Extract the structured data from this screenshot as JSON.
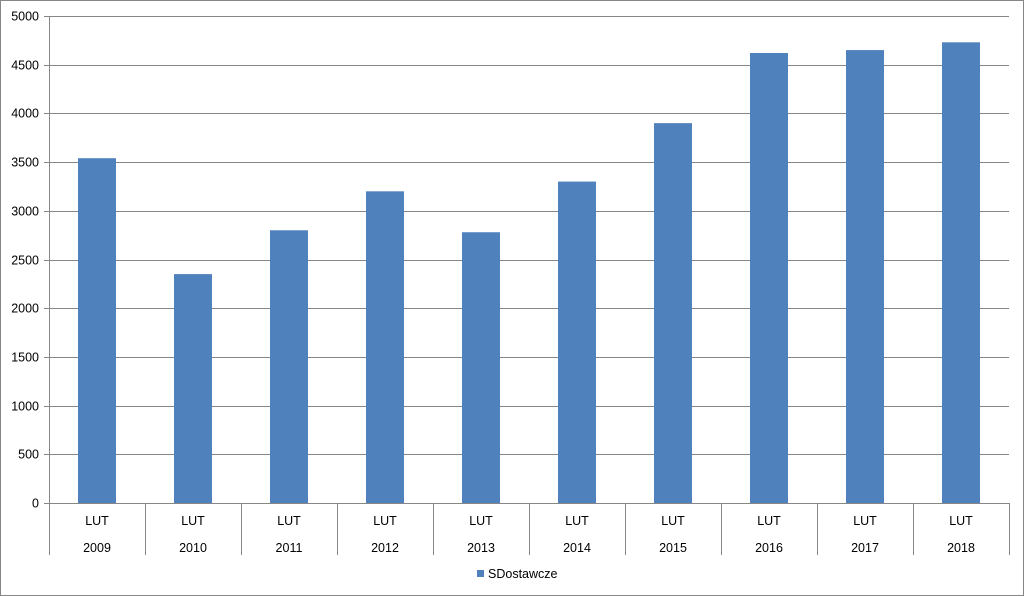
{
  "chart_data": {
    "type": "bar",
    "categories": [
      {
        "month": "LUT",
        "year": "2009"
      },
      {
        "month": "LUT",
        "year": "2010"
      },
      {
        "month": "LUT",
        "year": "2011"
      },
      {
        "month": "LUT",
        "year": "2012"
      },
      {
        "month": "LUT",
        "year": "2013"
      },
      {
        "month": "LUT",
        "year": "2014"
      },
      {
        "month": "LUT",
        "year": "2015"
      },
      {
        "month": "LUT",
        "year": "2016"
      },
      {
        "month": "LUT",
        "year": "2017"
      },
      {
        "month": "LUT",
        "year": "2018"
      }
    ],
    "series": [
      {
        "name": "SDostawcze",
        "color": "#4F81BD",
        "values": [
          3540,
          2350,
          2800,
          3200,
          2780,
          3300,
          3900,
          4620,
          4650,
          4730
        ]
      }
    ],
    "title": "",
    "xlabel": "",
    "ylabel": "",
    "ylim": [
      0,
      5000
    ],
    "yticks": [
      "0",
      "500",
      "1000",
      "1500",
      "2000",
      "2500",
      "3000",
      "3500",
      "4000",
      "4500",
      "5000"
    ],
    "grid": true,
    "legend_position": "bottom"
  }
}
